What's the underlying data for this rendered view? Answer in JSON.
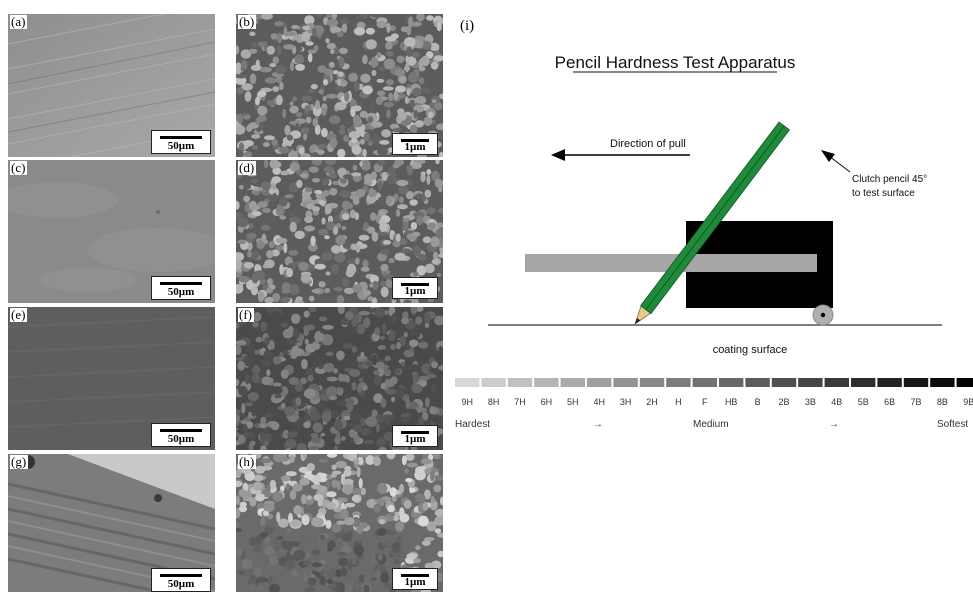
{
  "panels": [
    {
      "label": "(a)",
      "scale": "50µm",
      "kind": "smooth"
    },
    {
      "label": "(b)",
      "scale": "1µm",
      "kind": "grain"
    },
    {
      "label": "(c)",
      "scale": "50µm",
      "kind": "smooth"
    },
    {
      "label": "(d)",
      "scale": "1µm",
      "kind": "grain"
    },
    {
      "label": "(e)",
      "scale": "50µm",
      "kind": "smooth-dark"
    },
    {
      "label": "(f)",
      "scale": "1µm",
      "kind": "grain-dark"
    },
    {
      "label": "(g)",
      "scale": "50µm",
      "kind": "scratched"
    },
    {
      "label": "(h)",
      "scale": "1µm",
      "kind": "grain-light"
    }
  ],
  "diagram": {
    "label": "(i)",
    "title": "Pencil Hardness Test Apparatus",
    "direction_label": "Direction of pull",
    "pencil_label_line1": "Clutch pencil 45°",
    "pencil_label_line2": "to test surface",
    "surface_label": "coating surface",
    "grades": [
      "9H",
      "8H",
      "7H",
      "6H",
      "5H",
      "4H",
      "3H",
      "2H",
      "H",
      "F",
      "HB",
      "B",
      "2B",
      "3B",
      "4B",
      "5B",
      "6B",
      "7B",
      "8B",
      "9B"
    ],
    "scale_left": "Hardest",
    "scale_mid": "Medium",
    "scale_right": "Softest",
    "arrow_glyph": "→",
    "colors": {
      "pencil": "#1f8a3a",
      "block": "#000000",
      "rod": "#a6a6a6",
      "wheel": "#b0b0b0"
    }
  }
}
